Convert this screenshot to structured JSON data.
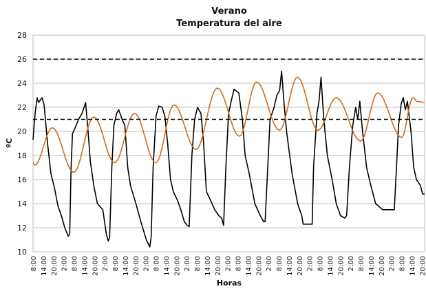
{
  "chart_data": {
    "type": "line",
    "title": "Verano",
    "subtitle": "Temperatura del aire",
    "xlabel": "Horas",
    "ylabel": "ºC",
    "ylim": [
      10,
      28
    ],
    "xlim": [
      0,
      229.5
    ],
    "yticks": [
      10,
      12,
      14,
      16,
      18,
      20,
      22,
      24,
      26,
      28
    ],
    "xtick_step_hours": 6,
    "xtick_labels": [
      "8:00",
      "14:00",
      "20:00",
      "2:00",
      "8:00",
      "14:00",
      "20:00",
      "2:00",
      "8:00",
      "14:00",
      "20:00",
      "2:00",
      "8:00",
      "14:00",
      "20:00",
      "2:00",
      "8:00",
      "14:00",
      "20:00",
      "2:00",
      "8:00",
      "14:00",
      "20:00",
      "2:00",
      "8:00",
      "14:00",
      "20:00",
      "2:00",
      "8:00",
      "14:00",
      "20:00",
      "2:00",
      "8:00",
      "14:00",
      "20:00",
      "2:00",
      "8:00",
      "14:00",
      "20:00"
    ],
    "grid": true,
    "reference_lines": [
      26,
      21
    ],
    "colors": {
      "black": "#000000",
      "orange": "#d2691e",
      "grid": "#bdbdbd",
      "dashed": "#000000"
    },
    "series": [
      {
        "name": "black",
        "smooth": false,
        "points": [
          [
            0,
            19.3
          ],
          [
            1.2,
            21.5
          ],
          [
            2.4,
            22.8
          ],
          [
            3.2,
            22.4
          ],
          [
            5.3,
            22.8
          ],
          [
            6.5,
            22.2
          ],
          [
            8.5,
            19
          ],
          [
            10.5,
            16.5
          ],
          [
            12.6,
            15.3
          ],
          [
            14.6,
            13.8
          ],
          [
            16.6,
            13
          ],
          [
            18.6,
            12
          ],
          [
            20.6,
            11.3
          ],
          [
            21.5,
            11.5
          ],
          [
            22.3,
            17
          ],
          [
            23.1,
            19.8
          ],
          [
            24.7,
            20.3
          ],
          [
            26.7,
            21
          ],
          [
            28.7,
            21.5
          ],
          [
            30.8,
            22.4
          ],
          [
            32,
            20.5
          ],
          [
            33.6,
            17.5
          ],
          [
            35.6,
            15.5
          ],
          [
            37.7,
            14
          ],
          [
            40.9,
            13.5
          ],
          [
            42.9,
            11.5
          ],
          [
            44.1,
            10.9
          ],
          [
            44.9,
            11.2
          ],
          [
            46.2,
            17
          ],
          [
            47.4,
            20.5
          ],
          [
            49,
            21.5
          ],
          [
            50.2,
            21.8
          ],
          [
            52.2,
            21
          ],
          [
            53.8,
            20.5
          ],
          [
            55.5,
            17
          ],
          [
            57.1,
            15.5
          ],
          [
            60.3,
            14
          ],
          [
            63.2,
            12.5
          ],
          [
            66.4,
            11
          ],
          [
            68.4,
            10.4
          ],
          [
            69.2,
            11.2
          ],
          [
            70.4,
            17
          ],
          [
            72.1,
            21.3
          ],
          [
            73.7,
            22.1
          ],
          [
            75.7,
            22
          ],
          [
            77.3,
            21.2
          ],
          [
            78.9,
            19
          ],
          [
            80.6,
            16
          ],
          [
            82.2,
            15
          ],
          [
            84.6,
            14.3
          ],
          [
            86.6,
            13.5
          ],
          [
            88.7,
            12.5
          ],
          [
            90.3,
            12.2
          ],
          [
            91.5,
            12.1
          ],
          [
            93.1,
            18
          ],
          [
            94.7,
            21
          ],
          [
            96.4,
            22
          ],
          [
            98.4,
            21.5
          ],
          [
            100,
            19
          ],
          [
            101.6,
            15
          ],
          [
            104,
            14.3
          ],
          [
            106.5,
            13.5
          ],
          [
            108.9,
            13
          ],
          [
            110.5,
            12.8
          ],
          [
            111.7,
            12.2
          ],
          [
            113,
            17
          ],
          [
            114.6,
            21.5
          ],
          [
            116.6,
            22.8
          ],
          [
            117.8,
            23.5
          ],
          [
            120.6,
            23.2
          ],
          [
            122.7,
            21
          ],
          [
            124.3,
            18
          ],
          [
            126.7,
            16.5
          ],
          [
            130,
            14
          ],
          [
            133.2,
            13
          ],
          [
            135.2,
            12.5
          ],
          [
            136,
            12.5
          ],
          [
            137.2,
            16
          ],
          [
            138.9,
            21
          ],
          [
            141.3,
            22
          ],
          [
            142.9,
            23
          ],
          [
            144.5,
            23.4
          ],
          [
            145.7,
            25
          ],
          [
            147,
            22.5
          ],
          [
            148.6,
            20
          ],
          [
            151.8,
            16.5
          ],
          [
            155.1,
            14
          ],
          [
            157.5,
            13
          ],
          [
            158.3,
            12.3
          ],
          [
            163.6,
            12.3
          ],
          [
            164.4,
            17
          ],
          [
            166.4,
            21.5
          ],
          [
            167.6,
            22.5
          ],
          [
            168.8,
            24.5
          ],
          [
            170.4,
            21
          ],
          [
            172.5,
            18
          ],
          [
            175.3,
            16
          ],
          [
            177.7,
            14
          ],
          [
            180.2,
            13
          ],
          [
            182.6,
            12.8
          ],
          [
            183.8,
            13
          ],
          [
            185.4,
            17
          ],
          [
            187.4,
            20.5
          ],
          [
            189.1,
            22
          ],
          [
            190.3,
            21
          ],
          [
            191.5,
            22.5
          ],
          [
            193.1,
            20
          ],
          [
            195.5,
            17
          ],
          [
            198,
            15.5
          ],
          [
            200.8,
            14
          ],
          [
            204.9,
            13.5
          ],
          [
            210.9,
            13.5
          ],
          [
            211.7,
            13.5
          ],
          [
            213,
            17
          ],
          [
            214.2,
            20.5
          ],
          [
            215.8,
            22.3
          ],
          [
            217,
            22.8
          ],
          [
            218.2,
            21.8
          ],
          [
            219.4,
            22.5
          ],
          [
            221.5,
            20
          ],
          [
            223.1,
            17
          ],
          [
            224.7,
            16
          ],
          [
            227.1,
            15.5
          ],
          [
            228.3,
            14.8
          ],
          [
            229.5,
            14.8
          ]
        ]
      },
      {
        "name": "orange",
        "smooth": true,
        "points": [
          [
            0,
            17.4
          ],
          [
            1,
            17.2
          ],
          [
            11.3,
            20.3
          ],
          [
            23.9,
            16.6
          ],
          [
            35.6,
            21.2
          ],
          [
            47.8,
            17.4
          ],
          [
            59.5,
            21.5
          ],
          [
            72,
            17.4
          ],
          [
            82.6,
            22.2
          ],
          [
            95.5,
            18.5
          ],
          [
            108,
            23.6
          ],
          [
            121,
            19.6
          ],
          [
            131,
            24.1
          ],
          [
            144.5,
            20.1
          ],
          [
            155,
            24.5
          ],
          [
            167,
            20.1
          ],
          [
            177.7,
            22.8
          ],
          [
            192,
            19.2
          ],
          [
            202,
            23.2
          ],
          [
            216,
            19.5
          ],
          [
            222.7,
            22.8
          ],
          [
            225,
            22.5
          ],
          [
            229.5,
            22.4
          ]
        ]
      }
    ]
  }
}
